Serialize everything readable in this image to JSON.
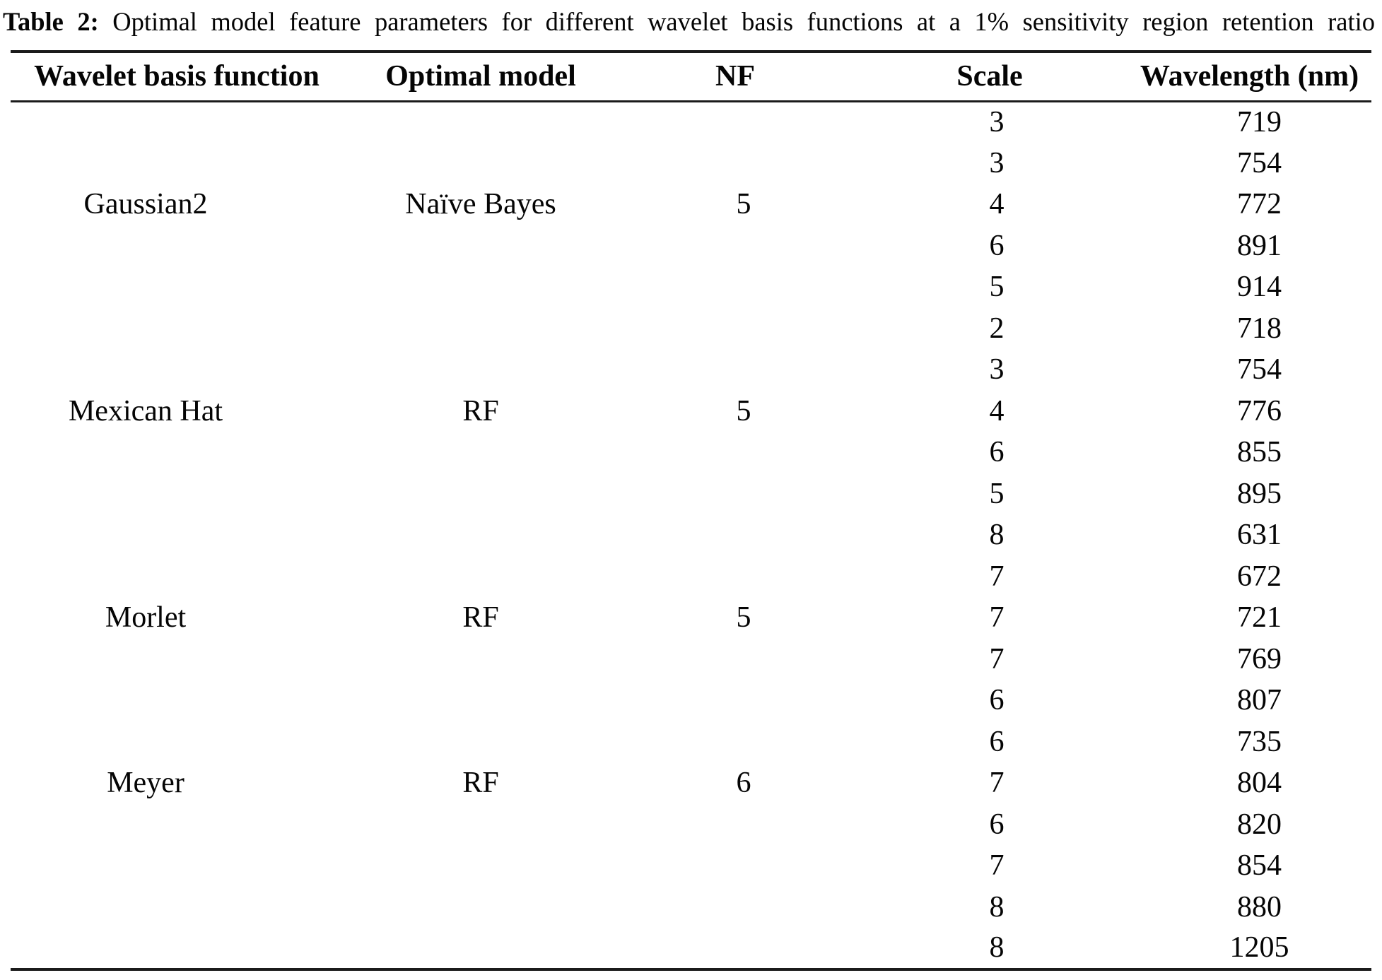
{
  "caption": {
    "label": "Table 2:",
    "text": "Optimal model feature parameters for different wavelet basis functions at a 1% sensitivity region retention ratio"
  },
  "table": {
    "columns": [
      {
        "key": "wavelet",
        "label": "Wavelet basis function"
      },
      {
        "key": "optimal_model",
        "label": "Optimal model"
      },
      {
        "key": "nf",
        "label": "NF"
      },
      {
        "key": "scale",
        "label": "Scale"
      },
      {
        "key": "wavelength",
        "label": "Wavelength (nm)"
      }
    ],
    "groups": [
      {
        "wavelet": "Gaussian2",
        "optimal_model": "Naïve Bayes",
        "nf": "5",
        "label_row_index": 2,
        "rows": [
          {
            "scale": "3",
            "wavelength": "719"
          },
          {
            "scale": "3",
            "wavelength": "754"
          },
          {
            "scale": "4",
            "wavelength": "772"
          },
          {
            "scale": "6",
            "wavelength": "891"
          },
          {
            "scale": "5",
            "wavelength": "914"
          }
        ]
      },
      {
        "wavelet": "Mexican Hat",
        "optimal_model": "RF",
        "nf": "5",
        "label_row_index": 2,
        "rows": [
          {
            "scale": "2",
            "wavelength": "718"
          },
          {
            "scale": "3",
            "wavelength": "754"
          },
          {
            "scale": "4",
            "wavelength": "776"
          },
          {
            "scale": "6",
            "wavelength": "855"
          },
          {
            "scale": "5",
            "wavelength": "895"
          }
        ]
      },
      {
        "wavelet": "Morlet",
        "optimal_model": "RF",
        "nf": "5",
        "label_row_index": 2,
        "rows": [
          {
            "scale": "8",
            "wavelength": "631"
          },
          {
            "scale": "7",
            "wavelength": "672"
          },
          {
            "scale": "7",
            "wavelength": "721"
          },
          {
            "scale": "7",
            "wavelength": "769"
          },
          {
            "scale": "6",
            "wavelength": "807"
          }
        ]
      },
      {
        "wavelet": "Meyer",
        "optimal_model": "RF",
        "nf": "6",
        "label_row_index": 1,
        "rows": [
          {
            "scale": "6",
            "wavelength": "735"
          },
          {
            "scale": "7",
            "wavelength": "804"
          },
          {
            "scale": "6",
            "wavelength": "820"
          },
          {
            "scale": "7",
            "wavelength": "854"
          },
          {
            "scale": "8",
            "wavelength": "880"
          },
          {
            "scale": "8",
            "wavelength": "1205"
          }
        ]
      }
    ]
  },
  "colors": {
    "text": "#050505",
    "rule": "#1b1b1b",
    "background": "#ffffff"
  }
}
